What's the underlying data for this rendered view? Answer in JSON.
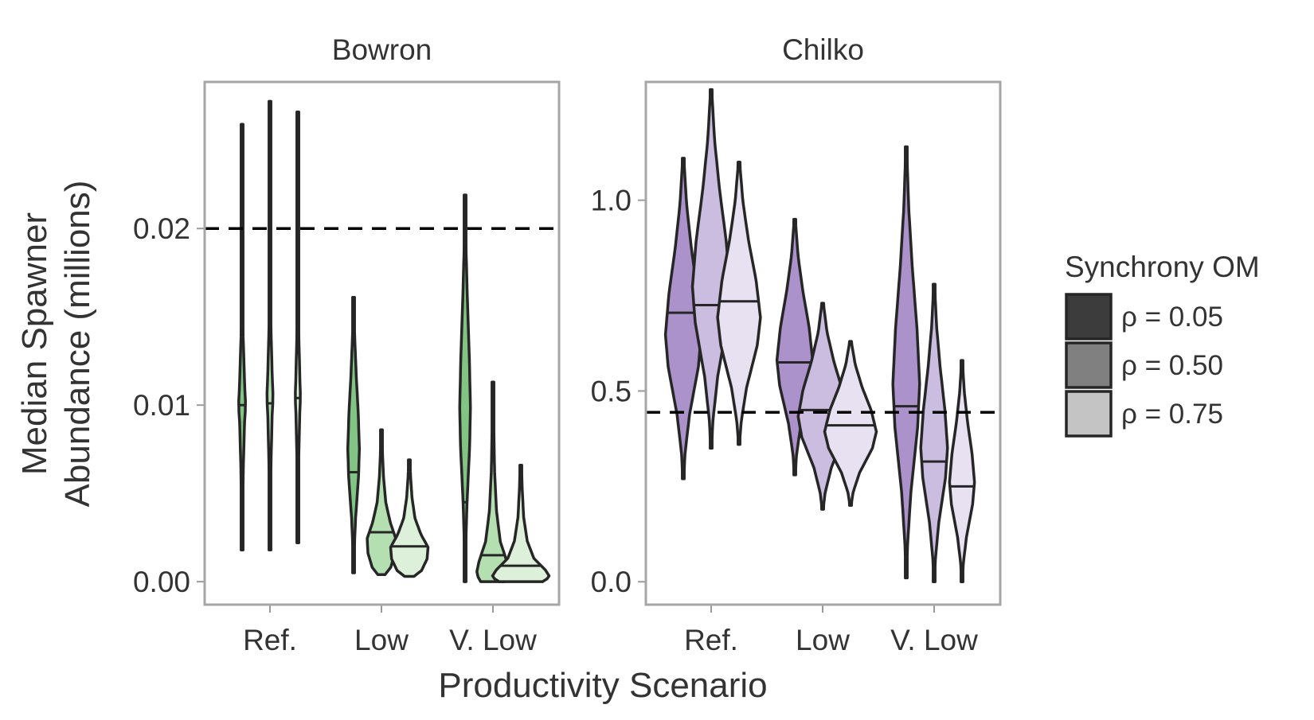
{
  "chart_data": {
    "type": "violin",
    "ylabel": [
      "Median Spawner",
      "Abundance (millions)"
    ],
    "xlabel": "Productivity Scenario",
    "categories": [
      "Ref.",
      "Low",
      "V. Low"
    ],
    "legend": {
      "title": "Synchrony OM",
      "placement": "right",
      "items": [
        "ρ = 0.05",
        "ρ = 0.50",
        "ρ = 0.75"
      ],
      "swatch_colors": [
        "#3c3c3c",
        "#808080",
        "#c4c4c4"
      ]
    },
    "grid": false,
    "panels": [
      {
        "title": "Bowron",
        "ylim": [
          -0.0013,
          0.0283
        ],
        "yticks": [
          0.0,
          0.01,
          0.02
        ],
        "ytick_labels": [
          "0.00",
          "0.01",
          "0.02"
        ],
        "reference_line": 0.02,
        "palette": [
          "#82c483",
          "#b4dfb1",
          "#ddf0d9"
        ],
        "groups": [
          {
            "category": "Ref.",
            "sync": "ρ = 0.05",
            "min": 0.0018,
            "max": 0.0259,
            "median": 0.01,
            "maxwidth": 0.08,
            "shape": "needle"
          },
          {
            "category": "Ref.",
            "sync": "ρ = 0.50",
            "min": 0.0018,
            "max": 0.0272,
            "median": 0.0101,
            "maxwidth": 0.07,
            "shape": "needle"
          },
          {
            "category": "Ref.",
            "sync": "ρ = 0.75",
            "min": 0.0022,
            "max": 0.0266,
            "median": 0.0104,
            "maxwidth": 0.06,
            "shape": "needle"
          },
          {
            "category": "Low",
            "sync": "ρ = 0.05",
            "min": 0.0005,
            "max": 0.0161,
            "median": 0.0062,
            "maxwidth": 0.13,
            "shape": "mid"
          },
          {
            "category": "Low",
            "sync": "ρ = 0.50",
            "min": 0.0004,
            "max": 0.0086,
            "median": 0.0028,
            "maxwidth": 0.32,
            "shape": "bottom"
          },
          {
            "category": "Low",
            "sync": "ρ = 0.75",
            "min": 0.0003,
            "max": 0.0069,
            "median": 0.002,
            "maxwidth": 0.42,
            "shape": "bottom"
          },
          {
            "category": "V. Low",
            "sync": "ρ = 0.05",
            "min": 0.0,
            "max": 0.0219,
            "median": 0.0045,
            "maxwidth": 0.12,
            "shape": "mid"
          },
          {
            "category": "V. Low",
            "sync": "ρ = 0.50",
            "min": 0.0,
            "max": 0.0113,
            "median": 0.0015,
            "maxwidth": 0.37,
            "shape": "floor"
          },
          {
            "category": "V. Low",
            "sync": "ρ = 0.75",
            "min": 0.0,
            "max": 0.0066,
            "median": 0.0009,
            "maxwidth": 0.65,
            "shape": "floor"
          }
        ]
      },
      {
        "title": "Chilko",
        "ylim": [
          -0.06,
          1.31
        ],
        "yticks": [
          0.0,
          0.5,
          1.0
        ],
        "ytick_labels": [
          "0.0",
          "0.5",
          "1.0"
        ],
        "reference_line": 0.444,
        "palette": [
          "#ab92cb",
          "#cbbddf",
          "#e7e1f1"
        ],
        "groups": [
          {
            "category": "Ref.",
            "sync": "ρ = 0.05",
            "min": 0.27,
            "max": 1.11,
            "median": 0.705,
            "maxwidth": 0.4,
            "shape": "mid"
          },
          {
            "category": "Ref.",
            "sync": "ρ = 0.50",
            "min": 0.35,
            "max": 1.29,
            "median": 0.725,
            "maxwidth": 0.42,
            "shape": "mid"
          },
          {
            "category": "Ref.",
            "sync": "ρ = 0.75",
            "min": 0.36,
            "max": 1.1,
            "median": 0.735,
            "maxwidth": 0.48,
            "shape": "mid"
          },
          {
            "category": "Low",
            "sync": "ρ = 0.05",
            "min": 0.28,
            "max": 0.95,
            "median": 0.575,
            "maxwidth": 0.4,
            "shape": "mid"
          },
          {
            "category": "Low",
            "sync": "ρ = 0.50",
            "min": 0.19,
            "max": 0.73,
            "median": 0.45,
            "maxwidth": 0.55,
            "shape": "mid"
          },
          {
            "category": "Low",
            "sync": "ρ = 0.75",
            "min": 0.2,
            "max": 0.63,
            "median": 0.41,
            "maxwidth": 0.58,
            "shape": "mid"
          },
          {
            "category": "V. Low",
            "sync": "ρ = 0.05",
            "min": 0.01,
            "max": 1.14,
            "median": 0.46,
            "maxwidth": 0.3,
            "shape": "mid"
          },
          {
            "category": "V. Low",
            "sync": "ρ = 0.50",
            "min": 0.0,
            "max": 0.78,
            "median": 0.315,
            "maxwidth": 0.3,
            "shape": "mid"
          },
          {
            "category": "V. Low",
            "sync": "ρ = 0.75",
            "min": 0.0,
            "max": 0.58,
            "median": 0.25,
            "maxwidth": 0.28,
            "shape": "mid"
          }
        ]
      }
    ]
  }
}
